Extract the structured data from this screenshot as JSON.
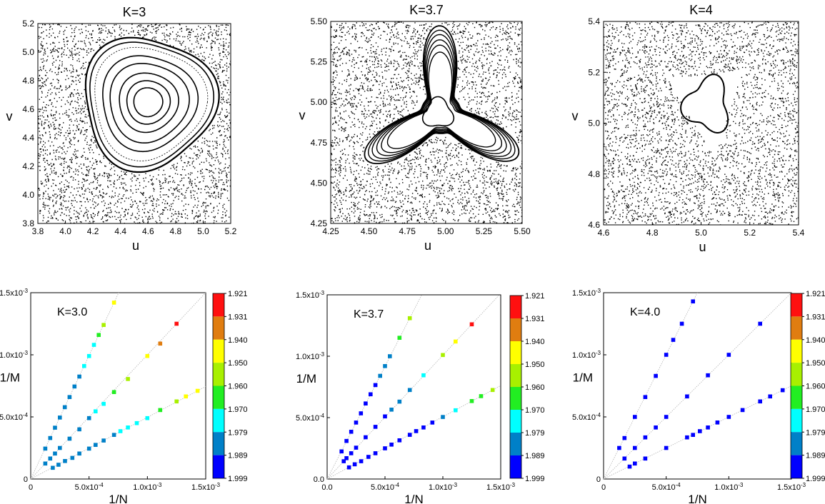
{
  "figure": {},
  "poincare": [
    {
      "title": "K=3",
      "xlabel": "u",
      "ylabel": "v",
      "xlim": [
        3.8,
        5.2
      ],
      "ylim": [
        3.8,
        5.2
      ],
      "xticks": [
        "3.8",
        "4.0",
        "4.2",
        "4.4",
        "4.6",
        "4.8",
        "5.0",
        "5.2"
      ],
      "yticks": [
        "3.8",
        "4.0",
        "4.2",
        "4.4",
        "4.6",
        "4.8",
        "5.0",
        "5.2"
      ],
      "island_center": [
        4.6,
        4.65
      ]
    },
    {
      "title": "K=3.7",
      "xlabel": "u",
      "ylabel": "v",
      "xlim": [
        4.25,
        5.5
      ],
      "ylim": [
        4.25,
        5.5
      ],
      "xticks": [
        "4.25",
        "4.50",
        "4.75",
        "5.00",
        "5.25",
        "5.50"
      ],
      "yticks": [
        "4.25",
        "4.50",
        "4.75",
        "5.00",
        "5.25",
        "5.50"
      ],
      "island_center": [
        4.97,
        4.93
      ]
    },
    {
      "title": "K=4",
      "xlabel": "u",
      "ylabel": "v",
      "xlim": [
        4.6,
        5.4
      ],
      "ylim": [
        4.6,
        5.4
      ],
      "xticks": [
        "4.6",
        "4.8",
        "5.0",
        "5.2",
        "5.4"
      ],
      "yticks": [
        "4.6",
        "4.8",
        "5.0",
        "5.2",
        "5.4"
      ],
      "island_center": [
        5.02,
        5.06
      ]
    }
  ],
  "colorbar": {
    "labels": [
      "1.921",
      "1.931",
      "1.940",
      "1.950",
      "1.960",
      "1.970",
      "1.979",
      "1.989",
      "1.999"
    ],
    "colors": [
      "#ff1010",
      "#e07d10",
      "#ffff00",
      "#a8f000",
      "#22ee22",
      "#00ffff",
      "#0080c8",
      "#0000ff"
    ]
  },
  "chart_data": [
    {
      "type": "scatter",
      "text_label": "K=3.0",
      "xlabel": "1/N",
      "ylabel": "1/M",
      "xlim": [
        0,
        0.0015
      ],
      "ylim": [
        0,
        0.0015
      ],
      "xticks": [
        {
          "v": 0,
          "m": "0",
          "e": ""
        },
        {
          "v": 0.0005,
          "m": "5.0x10",
          "e": "-4"
        },
        {
          "v": 0.001,
          "m": "1.0x10",
          "e": "-3"
        },
        {
          "v": 0.0015,
          "m": "1.5x10",
          "e": "-3"
        }
      ],
      "yticks": [
        {
          "v": 0,
          "m": "0",
          "e": ""
        },
        {
          "v": 0.0005,
          "m": "5.0x10",
          "e": "-4"
        },
        {
          "v": 0.001,
          "m": "1.0x10",
          "e": "-3"
        },
        {
          "v": 0.0015,
          "m": "1.5x10",
          "e": "-3"
        }
      ],
      "series": [
        {
          "x": [
            0.000125,
            0.000167,
            0.000208,
            0.00025,
            0.000292,
            0.000333,
            0.000375,
            0.000417,
            0.000458,
            0.0005,
            0.000542,
            0.000583,
            0.000625,
            0.000714
          ],
          "y": [
            0.000245,
            0.00033,
            0.000413,
            0.000495,
            0.000578,
            0.00066,
            0.000745,
            0.000825,
            0.00091,
            0.00099,
            0.00108,
            0.00116,
            0.00124,
            0.00142
          ],
          "colors": [
            "#0080c8",
            "#0080c8",
            "#0080c8",
            "#0080c8",
            "#0080c8",
            "#0080c8",
            "#0080c8",
            "#0080c8",
            "#00ffff",
            "#00ffff",
            "#00ffff",
            "#22ee22",
            "#a8f000",
            "#ffff00"
          ]
        },
        {
          "x": [
            0.000125,
            0.000167,
            0.000208,
            0.00025,
            0.000333,
            0.000417,
            0.0005,
            0.000556,
            0.000625,
            0.000714,
            0.000833,
            0.001,
            0.00111,
            0.00125
          ],
          "y": [
            0.000125,
            0.000165,
            0.000205,
            0.00025,
            0.000325,
            0.0004,
            0.00049,
            0.000545,
            0.000605,
            0.0007,
            0.000805,
            0.00099,
            0.00109,
            0.00125
          ],
          "colors": [
            "#0080c8",
            "#0080c8",
            "#0080c8",
            "#0080c8",
            "#0080c8",
            "#0080c8",
            "#0080c8",
            "#00ffff",
            "#00ffff",
            "#22ee22",
            "#a8f000",
            "#ffff00",
            "#e07d10",
            "#ff1010"
          ]
        },
        {
          "x": [
            0.000189,
            0.000238,
            0.000294,
            0.000357,
            0.000417,
            0.0005,
            0.000556,
            0.000625,
            0.000714,
            0.000769,
            0.000833,
            0.000909,
            0.001,
            0.00111,
            0.00125,
            0.00133,
            0.00143
          ],
          "y": [
            9e-05,
            0.000115,
            0.000145,
            0.00017,
            0.000205,
            0.000245,
            0.000275,
            0.00031,
            0.000355,
            0.000385,
            0.000415,
            0.00045,
            0.00049,
            0.000555,
            0.000625,
            0.000665,
            0.00071
          ],
          "colors": [
            "#0080c8",
            "#0080c8",
            "#0080c8",
            "#0080c8",
            "#0080c8",
            "#0080c8",
            "#0080c8",
            "#0080c8",
            "#0080c8",
            "#00ffff",
            "#00ffff",
            "#00ffff",
            "#00ffff",
            "#22ee22",
            "#a8f000",
            "#ffff00",
            "#ffff00"
          ]
        }
      ]
    },
    {
      "type": "scatter",
      "text_label": "K=3.7",
      "xlabel": "1/N",
      "ylabel": "1/M",
      "xlim": [
        0,
        0.0015
      ],
      "ylim": [
        0,
        0.0015
      ],
      "xticks": [
        {
          "v": 0,
          "m": "0.0",
          "e": ""
        },
        {
          "v": 0.0005,
          "m": "5.0x10",
          "e": "-4"
        },
        {
          "v": 0.001,
          "m": "1.0x10",
          "e": "-3"
        },
        {
          "v": 0.0015,
          "m": "1.5x10",
          "e": "-3"
        }
      ],
      "yticks": [
        {
          "v": 0,
          "m": "0.0",
          "e": ""
        },
        {
          "v": 0.0005,
          "m": "5.0x10",
          "e": "-4"
        },
        {
          "v": 0.001,
          "m": "1.0x10",
          "e": "-3"
        },
        {
          "v": 0.0015,
          "m": "1.5x10",
          "e": "-3"
        }
      ],
      "series": [
        {
          "x": [
            0.000125,
            0.000167,
            0.000208,
            0.00025,
            0.000292,
            0.000333,
            0.000375,
            0.000417,
            0.000458,
            0.0005,
            0.000542,
            0.000625,
            0.000714
          ],
          "y": [
            0.000225,
            0.00031,
            0.000385,
            0.00046,
            0.000535,
            0.000615,
            0.00069,
            0.000765,
            0.00084,
            0.00092,
            0.001,
            0.00115,
            0.00131
          ],
          "colors": [
            "#0000ff",
            "#0000ff",
            "#0000ff",
            "#0000ff",
            "#0000ff",
            "#0000ff",
            "#0000ff",
            "#0000ff",
            "#0080c8",
            "#0080c8",
            "#0080c8",
            "#22ee22",
            "#a8f000"
          ]
        },
        {
          "x": [
            0.000143,
            0.000167,
            0.000208,
            0.00025,
            0.000333,
            0.000417,
            0.0005,
            0.000556,
            0.000625,
            0.000714,
            0.000833,
            0.001,
            0.00111,
            0.00125
          ],
          "y": [
            0.000145,
            0.00017,
            0.00021,
            0.000255,
            0.00034,
            0.000425,
            0.00051,
            0.000565,
            0.00063,
            0.000725,
            0.000845,
            0.00101,
            0.00112,
            0.00126
          ],
          "colors": [
            "#0000ff",
            "#0000ff",
            "#0000ff",
            "#0000ff",
            "#0000ff",
            "#0000ff",
            "#0000ff",
            "#0080c8",
            "#0080c8",
            "#0080c8",
            "#00ffff",
            "#a8f000",
            "#ffff00",
            "#ff1010"
          ]
        },
        {
          "x": [
            0.000189,
            0.000238,
            0.000294,
            0.000357,
            0.000417,
            0.0005,
            0.000556,
            0.000625,
            0.000714,
            0.000769,
            0.000833,
            0.000909,
            0.001,
            0.00111,
            0.00125,
            0.00133,
            0.00143
          ],
          "y": [
            9.5e-05,
            0.00012,
            0.000145,
            0.00018,
            0.00021,
            0.00025,
            0.00028,
            0.000315,
            0.00036,
            0.00039,
            0.00042,
            0.00046,
            0.000505,
            0.00056,
            0.000635,
            0.000675,
            0.000725
          ],
          "colors": [
            "#0000ff",
            "#0000ff",
            "#0000ff",
            "#0000ff",
            "#0000ff",
            "#0000ff",
            "#0000ff",
            "#0000ff",
            "#0000ff",
            "#0000ff",
            "#0000ff",
            "#0000ff",
            "#0080c8",
            "#00ffff",
            "#22ee22",
            "#22ee22",
            "#a8f000"
          ]
        }
      ]
    },
    {
      "type": "scatter",
      "text_label": "K=4.0",
      "xlabel": "1/N",
      "ylabel": "1/M",
      "xlim": [
        0,
        0.0015
      ],
      "ylim": [
        0,
        0.0015
      ],
      "xticks": [
        {
          "v": 0,
          "m": "0",
          "e": ""
        },
        {
          "v": 0.0005,
          "m": "5.0x10",
          "e": "-4"
        },
        {
          "v": 0.001,
          "m": "1.0x10",
          "e": "-3"
        },
        {
          "v": 0.0015,
          "m": "1.5x10",
          "e": "-3"
        }
      ],
      "yticks": [
        {
          "v": 0,
          "m": "0",
          "e": ""
        },
        {
          "v": 0.0005,
          "m": "5.0x10",
          "e": "-4"
        },
        {
          "v": 0.001,
          "m": "1.0x10",
          "e": "-3"
        },
        {
          "v": 0.0015,
          "m": "1.5x10",
          "e": "-3"
        }
      ],
      "series": [
        {
          "x": [
            0.000125,
            0.000167,
            0.00025,
            0.000333,
            0.000417,
            0.0005,
            0.000556,
            0.000625,
            0.000714
          ],
          "y": [
            0.00025,
            0.00033,
            0.0005,
            0.00066,
            0.00083,
            0.001,
            0.00112,
            0.00125,
            0.00143
          ],
          "colors": [
            "#0000ff",
            "#0000ff",
            "#0000ff",
            "#0000ff",
            "#0000ff",
            "#0000ff",
            "#0000ff",
            "#0000ff",
            "#0000ff"
          ]
        },
        {
          "x": [
            0.000167,
            0.00025,
            0.000333,
            0.000417,
            0.0005,
            0.000667,
            0.000833,
            0.001,
            0.00125
          ],
          "y": [
            0.000165,
            0.00025,
            0.000335,
            0.000415,
            0.0005,
            0.000665,
            0.000835,
            0.001,
            0.00125
          ],
          "colors": [
            "#0000ff",
            "#0000ff",
            "#0000ff",
            "#0000ff",
            "#0000ff",
            "#0000ff",
            "#0000ff",
            "#0000ff",
            "#0000ff"
          ]
        },
        {
          "x": [
            0.000208,
            0.00025,
            0.000333,
            0.0005,
            0.000667,
            0.000714,
            0.000769,
            0.000833,
            0.000909,
            0.001,
            0.00111,
            0.00125,
            0.00133,
            0.00143
          ],
          "y": [
            0.0001,
            0.000125,
            0.000165,
            0.00025,
            0.000335,
            0.000355,
            0.000385,
            0.000415,
            0.000455,
            0.0005,
            0.000555,
            0.000625,
            0.000665,
            0.000715
          ],
          "colors": [
            "#0000ff",
            "#0000ff",
            "#0000ff",
            "#0000ff",
            "#0000ff",
            "#0000ff",
            "#0000ff",
            "#0000ff",
            "#0000ff",
            "#0000ff",
            "#0000ff",
            "#0000ff",
            "#0000ff",
            "#0000ff"
          ]
        }
      ]
    }
  ]
}
